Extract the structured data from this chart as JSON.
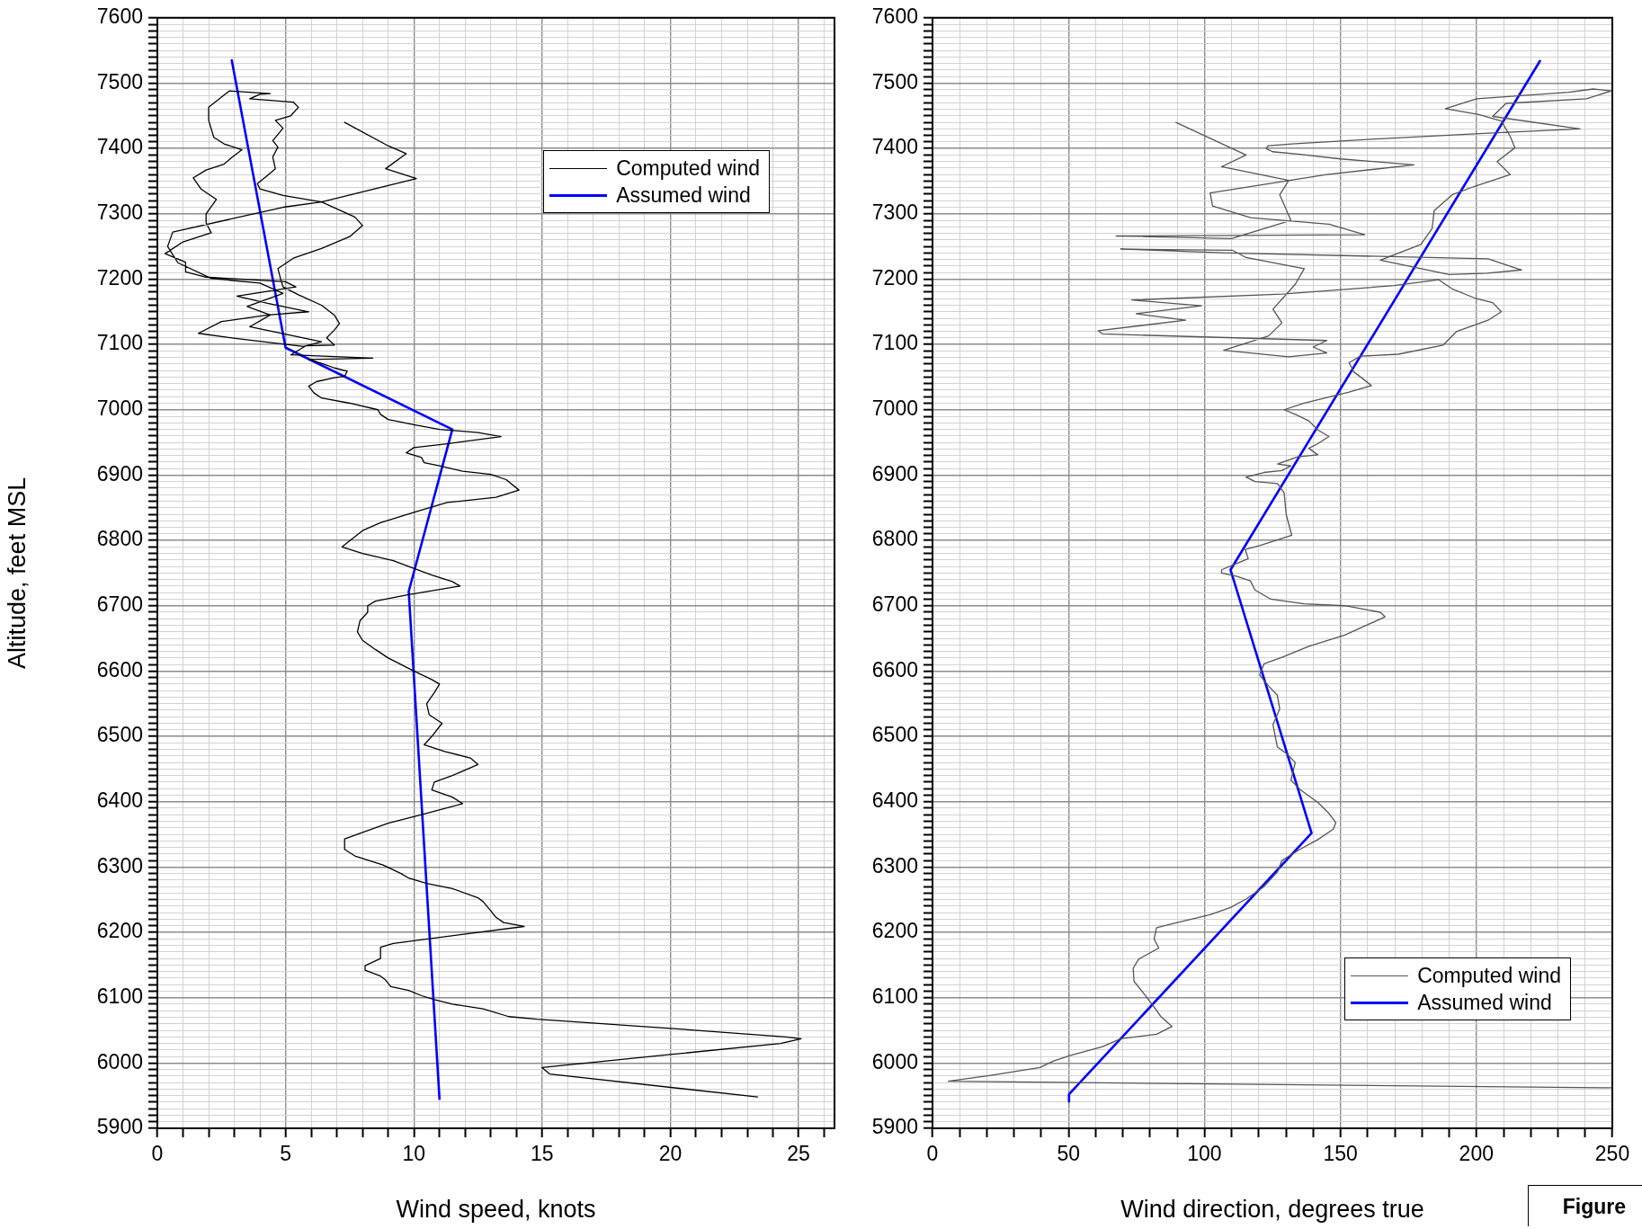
{
  "chart_data": [
    {
      "type": "line",
      "xlabel": "Wind speed, knots",
      "ylabel": "Altitude, feet MSL",
      "xlim": [
        0,
        26.4
      ],
      "ylim": [
        5900,
        7600
      ],
      "grid": true,
      "legend": "top right",
      "marker": "none",
      "xticks": [
        0,
        {
          "value": 1,
          "label": null
        },
        {
          "value": 2,
          "label": null
        },
        {
          "value": 3,
          "label": null
        },
        {
          "value": 4,
          "label": null
        },
        5,
        {
          "value": 6,
          "label": null
        },
        {
          "value": 7,
          "label": null
        },
        {
          "value": 8,
          "label": null
        },
        {
          "value": 9,
          "label": null
        },
        10,
        {
          "value": 11,
          "label": null
        },
        {
          "value": 12,
          "label": null
        },
        {
          "value": 13,
          "label": null
        },
        {
          "value": 14,
          "label": null
        },
        15,
        {
          "value": 16,
          "label": null
        },
        {
          "value": 17,
          "label": null
        },
        {
          "value": 18,
          "label": null
        },
        {
          "value": 19,
          "label": null
        },
        20,
        {
          "value": 21,
          "label": null
        },
        {
          "value": 22,
          "label": null
        },
        {
          "value": 23,
          "label": null
        },
        {
          "value": 24,
          "label": null
        },
        25,
        {
          "value": 26,
          "label": null
        }
      ],
      "yticks": [
        5900,
        {
          "value": 5910,
          "label": null
        },
        {
          "value": 5920,
          "label": null
        },
        {
          "value": 5930,
          "label": null
        },
        {
          "value": 5940,
          "label": null
        },
        {
          "value": 5950,
          "label": null
        },
        {
          "value": 5960,
          "label": null
        },
        {
          "value": 5970,
          "label": null
        },
        {
          "value": 5980,
          "label": null
        },
        {
          "value": 5990,
          "label": null
        },
        6000,
        {
          "value": 6010,
          "label": null
        },
        {
          "value": 6020,
          "label": null
        },
        {
          "value": 6030,
          "label": null
        },
        {
          "value": 6040,
          "label": null
        },
        {
          "value": 6050,
          "label": null
        },
        {
          "value": 6060,
          "label": null
        },
        {
          "value": 6070,
          "label": null
        },
        {
          "value": 6080,
          "label": null
        },
        {
          "value": 6090,
          "label": null
        },
        6100,
        {
          "value": 6110,
          "label": null
        },
        {
          "value": 6120,
          "label": null
        },
        {
          "value": 6130,
          "label": null
        },
        {
          "value": 6140,
          "label": null
        },
        {
          "value": 6150,
          "label": null
        },
        {
          "value": 6160,
          "label": null
        },
        {
          "value": 6170,
          "label": null
        },
        {
          "value": 6180,
          "label": null
        },
        {
          "value": 6190,
          "label": null
        },
        6200,
        {
          "value": 6210,
          "label": null
        },
        {
          "value": 6220,
          "label": null
        },
        {
          "value": 6230,
          "label": null
        },
        {
          "value": 6240,
          "label": null
        },
        {
          "value": 6250,
          "label": null
        },
        {
          "value": 6260,
          "label": null
        },
        {
          "value": 6270,
          "label": null
        },
        {
          "value": 6280,
          "label": null
        },
        {
          "value": 6290,
          "label": null
        },
        6300,
        {
          "value": 6310,
          "label": null
        },
        {
          "value": 6320,
          "label": null
        },
        {
          "value": 6330,
          "label": null
        },
        {
          "value": 6340,
          "label": null
        },
        {
          "value": 6350,
          "label": null
        },
        {
          "value": 6360,
          "label": null
        },
        {
          "value": 6370,
          "label": null
        },
        {
          "value": 6380,
          "label": null
        },
        {
          "value": 6390,
          "label": null
        },
        6400,
        {
          "value": 6410,
          "label": null
        },
        {
          "value": 6420,
          "label": null
        },
        {
          "value": 6430,
          "label": null
        },
        {
          "value": 6440,
          "label": null
        },
        {
          "value": 6450,
          "label": null
        },
        {
          "value": 6460,
          "label": null
        },
        {
          "value": 6470,
          "label": null
        },
        {
          "value": 6480,
          "label": null
        },
        {
          "value": 6490,
          "label": null
        },
        6500,
        {
          "value": 6510,
          "label": null
        },
        {
          "value": 6520,
          "label": null
        },
        {
          "value": 6530,
          "label": null
        },
        {
          "value": 6540,
          "label": null
        },
        {
          "value": 6550,
          "label": null
        },
        {
          "value": 6560,
          "label": null
        },
        {
          "value": 6570,
          "label": null
        },
        {
          "value": 6580,
          "label": null
        },
        {
          "value": 6590,
          "label": null
        },
        6600,
        {
          "value": 6610,
          "label": null
        },
        {
          "value": 6620,
          "label": null
        },
        {
          "value": 6630,
          "label": null
        },
        {
          "value": 6640,
          "label": null
        },
        {
          "value": 6650,
          "label": null
        },
        {
          "value": 6660,
          "label": null
        },
        {
          "value": 6670,
          "label": null
        },
        {
          "value": 6680,
          "label": null
        },
        {
          "value": 6690,
          "label": null
        },
        6700,
        {
          "value": 6710,
          "label": null
        },
        {
          "value": 6720,
          "label": null
        },
        {
          "value": 6730,
          "label": null
        },
        {
          "value": 6740,
          "label": null
        },
        {
          "value": 6750,
          "label": null
        },
        {
          "value": 6760,
          "label": null
        },
        {
          "value": 6770,
          "label": null
        },
        {
          "value": 6780,
          "label": null
        },
        {
          "value": 6790,
          "label": null
        },
        6800,
        {
          "value": 6810,
          "label": null
        },
        {
          "value": 6820,
          "label": null
        },
        {
          "value": 6830,
          "label": null
        },
        {
          "value": 6840,
          "label": null
        },
        {
          "value": 6850,
          "label": null
        },
        {
          "value": 6860,
          "label": null
        },
        {
          "value": 6870,
          "label": null
        },
        {
          "value": 6880,
          "label": null
        },
        {
          "value": 6890,
          "label": null
        },
        6900,
        {
          "value": 6910,
          "label": null
        },
        {
          "value": 6920,
          "label": null
        },
        {
          "value": 6930,
          "label": null
        },
        {
          "value": 6940,
          "label": null
        },
        {
          "value": 6950,
          "label": null
        },
        {
          "value": 6960,
          "label": null
        },
        {
          "value": 6970,
          "label": null
        },
        {
          "value": 6980,
          "label": null
        },
        {
          "value": 6990,
          "label": null
        },
        7000,
        {
          "value": 7010,
          "label": null
        },
        {
          "value": 7020,
          "label": null
        },
        {
          "value": 7030,
          "label": null
        },
        {
          "value": 7040,
          "label": null
        },
        {
          "value": 7050,
          "label": null
        },
        {
          "value": 7060,
          "label": null
        },
        {
          "value": 7070,
          "label": null
        },
        {
          "value": 7080,
          "label": null
        },
        {
          "value": 7090,
          "label": null
        },
        7100,
        {
          "value": 7110,
          "label": null
        },
        {
          "value": 7120,
          "label": null
        },
        {
          "value": 7130,
          "label": null
        },
        {
          "value": 7140,
          "label": null
        },
        {
          "value": 7150,
          "label": null
        },
        {
          "value": 7160,
          "label": null
        },
        {
          "value": 7170,
          "label": null
        },
        {
          "value": 7180,
          "label": null
        },
        {
          "value": 7190,
          "label": null
        },
        7200,
        {
          "value": 7210,
          "label": null
        },
        {
          "value": 7220,
          "label": null
        },
        {
          "value": 7230,
          "label": null
        },
        {
          "value": 7240,
          "label": null
        },
        {
          "value": 7250,
          "label": null
        },
        {
          "value": 7260,
          "label": null
        },
        {
          "value": 7270,
          "label": null
        },
        {
          "value": 7280,
          "label": null
        },
        {
          "value": 7290,
          "label": null
        },
        7300,
        {
          "value": 7310,
          "label": null
        },
        {
          "value": 7320,
          "label": null
        },
        {
          "value": 7330,
          "label": null
        },
        {
          "value": 7340,
          "label": null
        },
        {
          "value": 7350,
          "label": null
        },
        {
          "value": 7360,
          "label": null
        },
        {
          "value": 7370,
          "label": null
        },
        {
          "value": 7380,
          "label": null
        },
        {
          "value": 7390,
          "label": null
        },
        7400,
        {
          "value": 7410,
          "label": null
        },
        {
          "value": 7420,
          "label": null
        },
        {
          "value": 7430,
          "label": null
        },
        {
          "value": 7440,
          "label": null
        },
        {
          "value": 7450,
          "label": null
        },
        {
          "value": 7460,
          "label": null
        },
        {
          "value": 7470,
          "label": null
        },
        {
          "value": 7480,
          "label": null
        },
        {
          "value": 7490,
          "label": null
        },
        7500,
        {
          "value": 7510,
          "label": null
        },
        {
          "value": 7520,
          "label": null
        },
        {
          "value": 7530,
          "label": null
        },
        {
          "value": 7540,
          "label": null
        },
        {
          "value": 7550,
          "label": null
        },
        {
          "value": 7560,
          "label": null
        },
        {
          "value": 7570,
          "label": null
        },
        {
          "value": 7580,
          "label": null
        },
        {
          "value": 7590,
          "label": null
        },
        7600
      ],
      "series": [
        {
          "name": "Computed wind",
          "color": "#000000",
          "x": [
            23.4,
            15.3,
            15.0,
            20.0,
            24.3,
            25.1,
            24.5,
            20.0,
            14.8,
            13.7,
            12.7,
            11.5,
            10.8,
            10.3,
            9.8,
            9.1,
            8.9,
            8.7,
            8.1,
            8.1,
            8.7,
            8.7,
            9.2,
            14.3,
            13.5,
            13.2,
            13.0,
            12.7,
            12.5,
            11.5,
            10.5,
            9.8,
            9.5,
            8.8,
            7.7,
            7.3,
            7.3,
            8.0,
            9.0,
            10.3,
            11.9,
            11.5,
            10.7,
            10.8,
            11.5,
            12.5,
            12.2,
            11.2,
            10.4,
            10.7,
            11.1,
            10.6,
            10.5,
            10.8,
            11.0,
            10.7,
            10.0,
            9.5,
            9.0,
            8.5,
            8.0,
            7.8,
            7.9,
            8.2,
            8.2,
            8.5,
            9.8,
            11.8,
            11.5,
            10.7,
            9.8,
            9.2,
            8.0,
            7.2,
            8.0,
            8.7,
            10.0,
            11.3,
            13.2,
            14.1,
            13.6,
            13.0,
            11.9,
            11.0,
            10.4,
            10.3,
            9.7,
            10.0,
            11.3,
            13.4,
            12.5,
            11.0,
            10.0,
            9.0,
            8.7,
            8.6,
            7.5,
            6.4,
            6.1,
            5.9,
            6.2,
            6.9,
            7.3,
            7.4,
            6.9,
            6.4,
            5.9,
            8.4,
            5.2,
            5.8,
            6.9,
            6.6,
            6.9,
            7.1,
            6.9,
            6.4,
            5.5,
            4.9,
            4.8,
            4.7,
            5.3,
            6.4,
            7.5,
            8.0,
            7.7,
            6.4,
            4.9,
            4.0,
            3.9,
            4.3,
            4.6,
            4.5,
            4.7,
            4.5,
            4.9,
            4.6,
            5.2,
            5.5,
            5.3,
            3.6,
            4.0,
            4.4,
            2.8,
            2.0,
            2.0,
            2.2,
            2.6,
            3.3,
            2.9,
            2.6,
            1.9,
            1.4,
            1.7,
            2.3,
            1.9,
            1.9,
            2.1,
            1.0,
            0.3,
            1.1,
            1.1,
            1.9,
            5.0,
            5.4,
            3.1,
            4.3,
            5.9,
            4.3,
            2.5,
            1.6,
            2.9,
            5.7,
            6.4,
            3.6,
            4.4,
            3.5,
            4.9,
            4.0,
            2.1,
            0.8,
            0.4,
            0.6,
            4.9,
            6.4,
            10.1,
            8.9,
            9.7,
            9.0,
            7.3
          ],
          "values": [
            5948,
            5983,
            5993,
            6013,
            6030,
            6037,
            6040,
            6053,
            6067,
            6071,
            6083,
            6090,
            6097,
            6103,
            6111,
            6117,
            6127,
            6133,
            6142,
            6149,
            6160,
            6177,
            6183,
            6209,
            6215,
            6223,
            6233,
            6247,
            6253,
            6267,
            6275,
            6283,
            6290,
            6303,
            6317,
            6327,
            6343,
            6353,
            6367,
            6380,
            6397,
            6407,
            6418,
            6430,
            6440,
            6457,
            6467,
            6477,
            6487,
            6500,
            6520,
            6533,
            6550,
            6567,
            6580,
            6587,
            6600,
            6610,
            6620,
            6633,
            6647,
            6660,
            6677,
            6690,
            6700,
            6707,
            6717,
            6730,
            6737,
            6747,
            6760,
            6769,
            6780,
            6790,
            6815,
            6827,
            6843,
            6858,
            6866,
            6877,
            6893,
            6901,
            6906,
            6914,
            6919,
            6927,
            6934,
            6942,
            6948,
            6959,
            6965,
            6970,
            6977,
            6985,
            6993,
            7000,
            7010,
            7018,
            7026,
            7036,
            7043,
            7049,
            7051,
            7059,
            7064,
            7071,
            7077,
            7079,
            7084,
            7098,
            7099,
            7110,
            7122,
            7132,
            7145,
            7160,
            7176,
            7188,
            7201,
            7216,
            7232,
            7247,
            7265,
            7282,
            7295,
            7318,
            7328,
            7338,
            7346,
            7359,
            7369,
            7387,
            7402,
            7412,
            7431,
            7443,
            7450,
            7463,
            7471,
            7476,
            7483,
            7484,
            7488,
            7463,
            7443,
            7417,
            7407,
            7398,
            7386,
            7376,
            7367,
            7355,
            7338,
            7322,
            7300,
            7286,
            7271,
            7257,
            7239,
            7226,
            7211,
            7203,
            7196,
            7188,
            7174,
            7163,
            7150,
            7145,
            7135,
            7117,
            7110,
            7097,
            7104,
            7127,
            7145,
            7158,
            7178,
            7194,
            7201,
            7225,
            7250,
            7272,
            7310,
            7318,
            7354,
            7369,
            7392,
            7404,
            7440
          ]
        },
        {
          "name": "Assumed wind",
          "color": "#0000ff",
          "x": [
            2.9,
            5.0,
            11.5,
            9.8,
            11.0
          ],
          "values": [
            7535,
            7095,
            6970,
            6722,
            5945
          ]
        }
      ]
    },
    {
      "type": "line",
      "xlabel": "Wind direction, degrees true",
      "xlim": [
        0,
        250
      ],
      "ylim": [
        5900,
        7600
      ],
      "grid": true,
      "legend": "bottom right",
      "marker": "none",
      "annotations": [
        "Figure"
      ],
      "xticks": [
        0,
        {
          "value": 10,
          "label": null
        },
        {
          "value": 20,
          "label": null
        },
        {
          "value": 30,
          "label": null
        },
        {
          "value": 40,
          "label": null
        },
        50,
        {
          "value": 60,
          "label": null
        },
        {
          "value": 70,
          "label": null
        },
        {
          "value": 80,
          "label": null
        },
        {
          "value": 90,
          "label": null
        },
        100,
        {
          "value": 110,
          "label": null
        },
        {
          "value": 120,
          "label": null
        },
        {
          "value": 130,
          "label": null
        },
        {
          "value": 140,
          "label": null
        },
        150,
        {
          "value": 160,
          "label": null
        },
        {
          "value": 170,
          "label": null
        },
        {
          "value": 180,
          "label": null
        },
        {
          "value": 190,
          "label": null
        },
        200,
        {
          "value": 210,
          "label": null
        },
        {
          "value": 220,
          "label": null
        },
        {
          "value": 230,
          "label": null
        },
        {
          "value": 240,
          "label": null
        },
        250
      ],
      "yticks": [
        5900,
        {
          "value": 5910,
          "label": null
        },
        {
          "value": 5920,
          "label": null
        },
        {
          "value": 5930,
          "label": null
        },
        {
          "value": 5940,
          "label": null
        },
        {
          "value": 5950,
          "label": null
        },
        {
          "value": 5960,
          "label": null
        },
        {
          "value": 5970,
          "label": null
        },
        {
          "value": 5980,
          "label": null
        },
        {
          "value": 5990,
          "label": null
        },
        6000,
        {
          "value": 6010,
          "label": null
        },
        {
          "value": 6020,
          "label": null
        },
        {
          "value": 6030,
          "label": null
        },
        {
          "value": 6040,
          "label": null
        },
        {
          "value": 6050,
          "label": null
        },
        {
          "value": 6060,
          "label": null
        },
        {
          "value": 6070,
          "label": null
        },
        {
          "value": 6080,
          "label": null
        },
        {
          "value": 6090,
          "label": null
        },
        6100,
        {
          "value": 6110,
          "label": null
        },
        {
          "value": 6120,
          "label": null
        },
        {
          "value": 6130,
          "label": null
        },
        {
          "value": 6140,
          "label": null
        },
        {
          "value": 6150,
          "label": null
        },
        {
          "value": 6160,
          "label": null
        },
        {
          "value": 6170,
          "label": null
        },
        {
          "value": 6180,
          "label": null
        },
        {
          "value": 6190,
          "label": null
        },
        6200,
        {
          "value": 6210,
          "label": null
        },
        {
          "value": 6220,
          "label": null
        },
        {
          "value": 6230,
          "label": null
        },
        {
          "value": 6240,
          "label": null
        },
        {
          "value": 6250,
          "label": null
        },
        {
          "value": 6260,
          "label": null
        },
        {
          "value": 6270,
          "label": null
        },
        {
          "value": 6280,
          "label": null
        },
        {
          "value": 6290,
          "label": null
        },
        6300,
        {
          "value": 6310,
          "label": null
        },
        {
          "value": 6320,
          "label": null
        },
        {
          "value": 6330,
          "label": null
        },
        {
          "value": 6340,
          "label": null
        },
        {
          "value": 6350,
          "label": null
        },
        {
          "value": 6360,
          "label": null
        },
        {
          "value": 6370,
          "label": null
        },
        {
          "value": 6380,
          "label": null
        },
        {
          "value": 6390,
          "label": null
        },
        6400,
        {
          "value": 6410,
          "label": null
        },
        {
          "value": 6420,
          "label": null
        },
        {
          "value": 6430,
          "label": null
        },
        {
          "value": 6440,
          "label": null
        },
        {
          "value": 6450,
          "label": null
        },
        {
          "value": 6460,
          "label": null
        },
        {
          "value": 6470,
          "label": null
        },
        {
          "value": 6480,
          "label": null
        },
        {
          "value": 6490,
          "label": null
        },
        6500,
        {
          "value": 6510,
          "label": null
        },
        {
          "value": 6520,
          "label": null
        },
        {
          "value": 6530,
          "label": null
        },
        {
          "value": 6540,
          "label": null
        },
        {
          "value": 6550,
          "label": null
        },
        {
          "value": 6560,
          "label": null
        },
        {
          "value": 6570,
          "label": null
        },
        {
          "value": 6580,
          "label": null
        },
        {
          "value": 6590,
          "label": null
        },
        6600,
        {
          "value": 6610,
          "label": null
        },
        {
          "value": 6620,
          "label": null
        },
        {
          "value": 6630,
          "label": null
        },
        {
          "value": 6640,
          "label": null
        },
        {
          "value": 6650,
          "label": null
        },
        {
          "value": 6660,
          "label": null
        },
        {
          "value": 6670,
          "label": null
        },
        {
          "value": 6680,
          "label": null
        },
        {
          "value": 6690,
          "label": null
        },
        6700,
        {
          "value": 6710,
          "label": null
        },
        {
          "value": 6720,
          "label": null
        },
        {
          "value": 6730,
          "label": null
        },
        {
          "value": 6740,
          "label": null
        },
        {
          "value": 6750,
          "label": null
        },
        {
          "value": 6760,
          "label": null
        },
        {
          "value": 6770,
          "label": null
        },
        {
          "value": 6780,
          "label": null
        },
        {
          "value": 6790,
          "label": null
        },
        6800,
        {
          "value": 6810,
          "label": null
        },
        {
          "value": 6820,
          "label": null
        },
        {
          "value": 6830,
          "label": null
        },
        {
          "value": 6840,
          "label": null
        },
        {
          "value": 6850,
          "label": null
        },
        {
          "value": 6860,
          "label": null
        },
        {
          "value": 6870,
          "label": null
        },
        {
          "value": 6880,
          "label": null
        },
        {
          "value": 6890,
          "label": null
        },
        6900,
        {
          "value": 6910,
          "label": null
        },
        {
          "value": 6920,
          "label": null
        },
        {
          "value": 6930,
          "label": null
        },
        {
          "value": 6940,
          "label": null
        },
        {
          "value": 6950,
          "label": null
        },
        {
          "value": 6960,
          "label": null
        },
        {
          "value": 6970,
          "label": null
        },
        {
          "value": 6980,
          "label": null
        },
        {
          "value": 6990,
          "label": null
        },
        7000,
        {
          "value": 7010,
          "label": null
        },
        {
          "value": 7020,
          "label": null
        },
        {
          "value": 7030,
          "label": null
        },
        {
          "value": 7040,
          "label": null
        },
        {
          "value": 7050,
          "label": null
        },
        {
          "value": 7060,
          "label": null
        },
        {
          "value": 7070,
          "label": null
        },
        {
          "value": 7080,
          "label": null
        },
        {
          "value": 7090,
          "label": null
        },
        7100,
        {
          "value": 7110,
          "label": null
        },
        {
          "value": 7120,
          "label": null
        },
        {
          "value": 7130,
          "label": null
        },
        {
          "value": 7140,
          "label": null
        },
        {
          "value": 7150,
          "label": null
        },
        {
          "value": 7160,
          "label": null
        },
        {
          "value": 7170,
          "label": null
        },
        {
          "value": 7180,
          "label": null
        },
        {
          "value": 7190,
          "label": null
        },
        7200,
        {
          "value": 7210,
          "label": null
        },
        {
          "value": 7220,
          "label": null
        },
        {
          "value": 7230,
          "label": null
        },
        {
          "value": 7240,
          "label": null
        },
        {
          "value": 7250,
          "label": null
        },
        {
          "value": 7260,
          "label": null
        },
        {
          "value": 7270,
          "label": null
        },
        {
          "value": 7280,
          "label": null
        },
        {
          "value": 7290,
          "label": null
        },
        7300,
        {
          "value": 7310,
          "label": null
        },
        {
          "value": 7320,
          "label": null
        },
        {
          "value": 7330,
          "label": null
        },
        {
          "value": 7340,
          "label": null
        },
        {
          "value": 7350,
          "label": null
        },
        {
          "value": 7360,
          "label": null
        },
        {
          "value": 7370,
          "label": null
        },
        {
          "value": 7380,
          "label": null
        },
        {
          "value": 7390,
          "label": null
        },
        7400,
        {
          "value": 7410,
          "label": null
        },
        {
          "value": 7420,
          "label": null
        },
        {
          "value": 7430,
          "label": null
        },
        {
          "value": 7440,
          "label": null
        },
        {
          "value": 7450,
          "label": null
        },
        {
          "value": 7460,
          "label": null
        },
        {
          "value": 7470,
          "label": null
        },
        {
          "value": 7480,
          "label": null
        },
        {
          "value": 7490,
          "label": null
        },
        7500,
        {
          "value": 7510,
          "label": null
        },
        {
          "value": 7520,
          "label": null
        },
        {
          "value": 7530,
          "label": null
        },
        {
          "value": 7540,
          "label": null
        },
        {
          "value": 7550,
          "label": null
        },
        {
          "value": 7560,
          "label": null
        },
        {
          "value": 7570,
          "label": null
        },
        {
          "value": 7580,
          "label": null
        },
        {
          "value": 7590,
          "label": null
        },
        7600
      ],
      "series": [
        {
          "name": "Computed wind",
          "color": "#555555",
          "x": [
            250,
            5.8,
            21.4,
            39.5,
            44.5,
            51.1,
            62.6,
            69.2,
            82.4,
            88.1,
            84.0,
            80.7,
            77.4,
            74.1,
            73.8,
            75.8,
            83.2,
            81.5,
            82.4,
            89.0,
            102.1,
            109.6,
            115.3,
            121.9,
            126.8,
            128.5,
            135.1,
            141.7,
            147.4,
            148.3,
            145.8,
            141.7,
            135.1,
            131.8,
            133.4,
            130.1,
            126.8,
            126.0,
            125.2,
            127.7,
            126.8,
            123.6,
            120.3,
            121.9,
            128.5,
            138.4,
            151.6,
            166.4,
            164.7,
            151.6,
            136.7,
            124.4,
            118.6,
            116.9,
            112.0,
            106.3,
            106.3,
            110.4,
            116.1,
            115.0,
            120.3,
            132.1,
            130.1,
            129.3,
            126.9,
            118.6,
            115.3,
            121.9,
            128.5,
            131.8,
            126.9,
            134.3,
            141.7,
            138.4,
            141.7,
            145.8,
            141.7,
            138.4,
            133.4,
            129.3,
            136.7,
            153.2,
            161.4,
            158.1,
            154.9,
            153.2,
            157.3,
            171.3,
            187.8,
            192.8,
            204.3,
            209.2,
            206.0,
            199.4,
            191.1,
            186.2,
            169.7,
            128.5,
            73.3,
            98.9,
            74.9,
            93.1,
            60.9,
            62.6,
            145.0,
            140.0,
            145.0,
            130.9,
            107.1,
            123.6,
            128.5,
            125.2,
            133.4,
            136.7,
            115.3,
            110.4,
            69.2,
            108.7,
            204.3,
            216.6,
            204.0,
            190.0,
            164.7,
            179.6,
            183.7,
            184.5,
            191.1,
            199.3,
            212.5,
            207.6,
            214.2,
            212.5,
            209.2,
            200.9,
            188.6,
            200.1,
            233.9,
            243.0,
            249.6,
            240.5,
            210.9,
            206.0,
            238.1,
            202.6,
            161.4,
            132.0,
            123.5,
            122.7,
            125.0,
            135.0,
            150.0,
            177.1,
            145.0,
            102.1,
            103.0,
            117.0,
            145.8,
            159.0,
            67.5,
            110.0,
            131.8,
            127.7,
            131.0,
            106.3,
            115.3,
            89.5
          ],
          "values": [
            5962,
            5972,
            5981,
            5993,
            6003,
            6012,
            6025,
            6037,
            6044,
            6056,
            6071,
            6090,
            6108,
            6125,
            6145,
            6159,
            6176,
            6190,
            6207,
            6214,
            6227,
            6238,
            6251,
            6270,
            6292,
            6310,
            6327,
            6342,
            6358,
            6368,
            6382,
            6399,
            6419,
            6433,
            6460,
            6474,
            6484,
            6501,
            6518,
            6542,
            6563,
            6577,
            6594,
            6611,
            6621,
            6638,
            6655,
            6683,
            6690,
            6700,
            6703,
            6710,
            6724,
            6738,
            6745,
            6750,
            6755,
            6762,
            6772,
            6786,
            6792,
            6808,
            6839,
            6873,
            6887,
            6890,
            6897,
            6904,
            6907,
            6914,
            6917,
            6928,
            6931,
            6941,
            6948,
            6959,
            6969,
            6983,
            6993,
            7000,
            7010,
            7027,
            7037,
            7048,
            7058,
            7072,
            7082,
            7085,
            7099,
            7120,
            7137,
            7150,
            7164,
            7171,
            7185,
            7199,
            7190,
            7177,
            7168,
            7159,
            7147,
            7137,
            7121,
            7116,
            7106,
            7096,
            7087,
            7081,
            7091,
            7113,
            7133,
            7154,
            7192,
            7216,
            7233,
            7244,
            7246,
            7240,
            7231,
            7214,
            7209,
            7207,
            7229,
            7253,
            7277,
            7305,
            7329,
            7342,
            7360,
            7380,
            7401,
            7418,
            7442,
            7452,
            7461,
            7476,
            7486,
            7491,
            7488,
            7476,
            7469,
            7449,
            7430,
            7423,
            7414,
            7407,
            7404,
            7400,
            7395,
            7391,
            7384,
            7375,
            7360,
            7332,
            7312,
            7294,
            7284,
            7268,
            7266,
            7262,
            7290,
            7329,
            7351,
            7372,
            7390,
            7440
          ]
        },
        {
          "name": "Assumed wind",
          "color": "#0000ff",
          "x": [
            223.4,
            109.6,
            139.4,
            50.2,
            50.2
          ],
          "values": [
            7534,
            6755,
            6352,
            5952,
            5941
          ]
        }
      ]
    }
  ]
}
